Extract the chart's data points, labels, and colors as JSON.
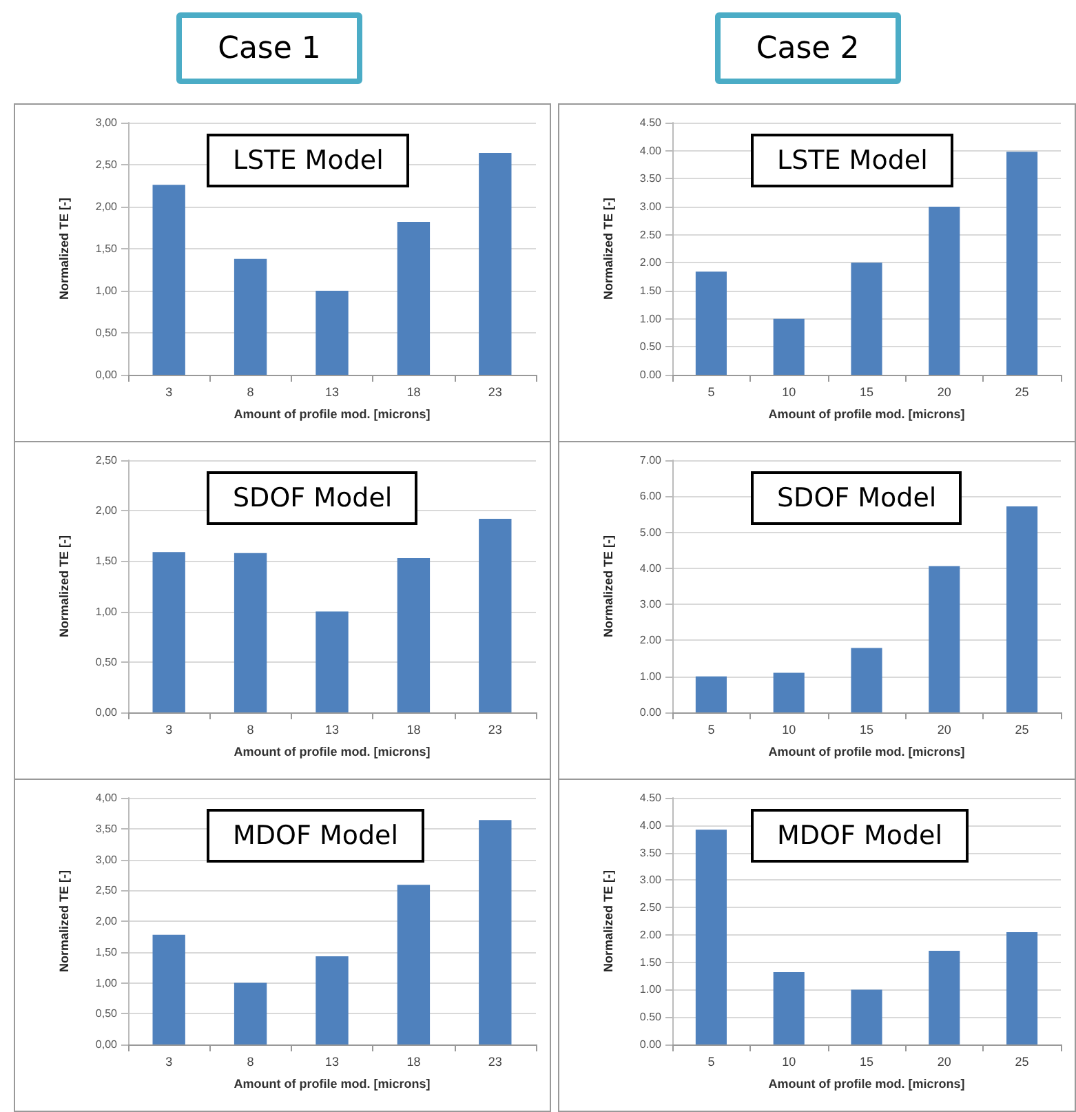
{
  "chart_data": [
    {
      "type": "bar",
      "title": "LSTE Model",
      "annotations": [
        "Case 1"
      ],
      "xlabel": "Amount of profile mod. [microns]",
      "ylabel": "Normalized TE [-]",
      "categories": [
        "3",
        "8",
        "13",
        "18",
        "23"
      ],
      "values": [
        2.26,
        1.38,
        1.0,
        1.82,
        2.64
      ],
      "color": "#4f81bd",
      "ylim": [
        0,
        3
      ],
      "yticks": [
        {
          "value": 0,
          "label": "0,00"
        },
        {
          "value": 0.5,
          "label": "0,50"
        },
        {
          "value": 1,
          "label": "1,00"
        },
        {
          "value": 1.5,
          "label": "1,50"
        },
        {
          "value": 2,
          "label": "2,00"
        },
        {
          "value": 2.5,
          "label": "2,50"
        },
        {
          "value": 3,
          "label": "3,00"
        }
      ],
      "grid": "y"
    },
    {
      "type": "bar",
      "title": "LSTE Model",
      "annotations": [
        "Case 2"
      ],
      "xlabel": "Amount of profile mod. [microns]",
      "ylabel": "Normalized TE [-]",
      "categories": [
        "5",
        "10",
        "15",
        "20",
        "25"
      ],
      "values": [
        1.84,
        1.0,
        2.0,
        3.0,
        3.98
      ],
      "color": "#4f81bd",
      "ylim": [
        0,
        4.5
      ],
      "yticks": [
        {
          "value": 0,
          "label": "0.00"
        },
        {
          "value": 0.5,
          "label": "0.50"
        },
        {
          "value": 1,
          "label": "1.00"
        },
        {
          "value": 1.5,
          "label": "1.50"
        },
        {
          "value": 2,
          "label": "2.00"
        },
        {
          "value": 2.5,
          "label": "2.50"
        },
        {
          "value": 3,
          "label": "3.00"
        },
        {
          "value": 3.5,
          "label": "3.50"
        },
        {
          "value": 4,
          "label": "4.00"
        },
        {
          "value": 4.5,
          "label": "4.50"
        }
      ],
      "grid": "y"
    },
    {
      "type": "bar",
      "title": "SDOF Model",
      "xlabel": "Amount of profile mod. [microns]",
      "ylabel": "Normalized TE [-]",
      "categories": [
        "3",
        "8",
        "13",
        "18",
        "23"
      ],
      "values": [
        1.59,
        1.58,
        1.0,
        1.53,
        1.92
      ],
      "color": "#4f81bd",
      "ylim": [
        0,
        2.5
      ],
      "yticks": [
        {
          "value": 0,
          "label": "0,00"
        },
        {
          "value": 0.5,
          "label": "0,50"
        },
        {
          "value": 1,
          "label": "1,00"
        },
        {
          "value": 1.5,
          "label": "1,50"
        },
        {
          "value": 2,
          "label": "2,00"
        },
        {
          "value": 2.5,
          "label": "2,50"
        }
      ],
      "grid": "y"
    },
    {
      "type": "bar",
      "title": "SDOF Model",
      "xlabel": "Amount of profile mod. [microns]",
      "ylabel": "Normalized TE [-]",
      "categories": [
        "5",
        "10",
        "15",
        "20",
        "25"
      ],
      "values": [
        1.0,
        1.1,
        1.79,
        4.06,
        5.72
      ],
      "color": "#4f81bd",
      "ylim": [
        0,
        7
      ],
      "yticks": [
        {
          "value": 0,
          "label": "0.00"
        },
        {
          "value": 1,
          "label": "1.00"
        },
        {
          "value": 2,
          "label": "2.00"
        },
        {
          "value": 3,
          "label": "3.00"
        },
        {
          "value": 4,
          "label": "4.00"
        },
        {
          "value": 5,
          "label": "5.00"
        },
        {
          "value": 6,
          "label": "6.00"
        },
        {
          "value": 7,
          "label": "7.00"
        }
      ],
      "grid": "y"
    },
    {
      "type": "bar",
      "title": "MDOF Model",
      "xlabel": "Amount of profile mod. [microns]",
      "ylabel": "Normalized TE [-]",
      "categories": [
        "3",
        "8",
        "13",
        "18",
        "23"
      ],
      "values": [
        1.78,
        1.0,
        1.43,
        2.59,
        3.64
      ],
      "color": "#4f81bd",
      "ylim": [
        0,
        4
      ],
      "yticks": [
        {
          "value": 0,
          "label": "0,00"
        },
        {
          "value": 0.5,
          "label": "0,50"
        },
        {
          "value": 1,
          "label": "1,00"
        },
        {
          "value": 1.5,
          "label": "1,50"
        },
        {
          "value": 2,
          "label": "2,00"
        },
        {
          "value": 2.5,
          "label": "2,50"
        },
        {
          "value": 3,
          "label": "3,00"
        },
        {
          "value": 3.5,
          "label": "3,50"
        },
        {
          "value": 4,
          "label": "4,00"
        }
      ],
      "grid": "y"
    },
    {
      "type": "bar",
      "title": "MDOF Model",
      "xlabel": "Amount of profile mod. [microns]",
      "ylabel": "Normalized TE [-]",
      "categories": [
        "5",
        "10",
        "15",
        "20",
        "25"
      ],
      "values": [
        3.92,
        1.32,
        1.0,
        1.71,
        2.05
      ],
      "color": "#4f81bd",
      "ylim": [
        0,
        4.5
      ],
      "yticks": [
        {
          "value": 0,
          "label": "0.00"
        },
        {
          "value": 0.5,
          "label": "0.50"
        },
        {
          "value": 1,
          "label": "1.00"
        },
        {
          "value": 1.5,
          "label": "1.50"
        },
        {
          "value": 2,
          "label": "2.00"
        },
        {
          "value": 2.5,
          "label": "2.50"
        },
        {
          "value": 3,
          "label": "3.00"
        },
        {
          "value": 3.5,
          "label": "3.50"
        },
        {
          "value": 4,
          "label": "4.00"
        },
        {
          "value": 4.5,
          "label": "4.50"
        }
      ],
      "grid": "y"
    }
  ]
}
